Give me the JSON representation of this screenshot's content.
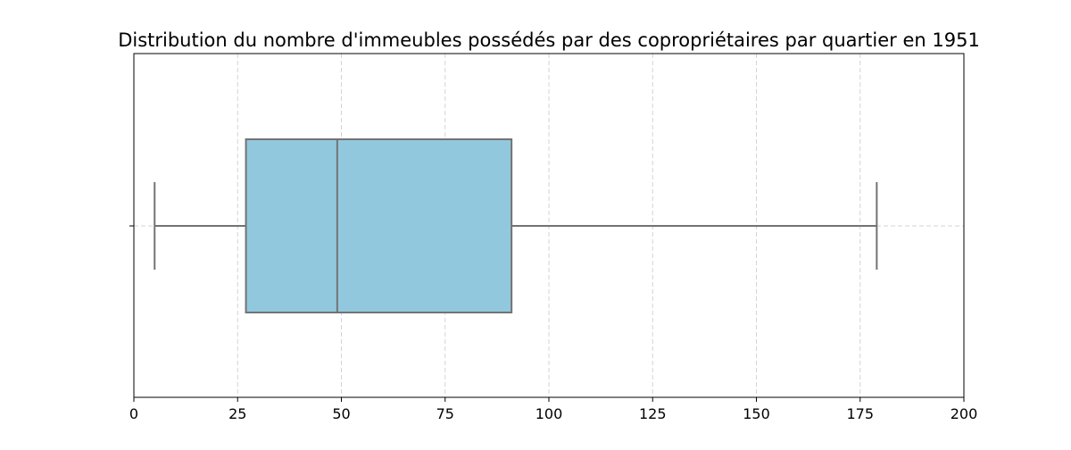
{
  "chart_data": {
    "type": "boxplot",
    "title": "Distribution du nombre d'immeubles possédés par des copropriétaires par quartier en 1951",
    "xlabel": "",
    "ylabel": "",
    "xlim": [
      0,
      200
    ],
    "x_ticks": [
      0,
      25,
      50,
      75,
      100,
      125,
      150,
      175,
      200
    ],
    "x_tick_labels": [
      "0",
      "25",
      "50",
      "75",
      "100",
      "125",
      "150",
      "175",
      "200"
    ],
    "grid": true,
    "orientation": "horizontal",
    "box": {
      "whisker_low": 5,
      "q1": 27,
      "median": 49,
      "q3": 91,
      "whisker_high": 179
    },
    "colors": {
      "box_fill": "#92c8de",
      "box_edge": "#737373",
      "grid": "#d3d3d3",
      "axes": "#000000"
    }
  }
}
